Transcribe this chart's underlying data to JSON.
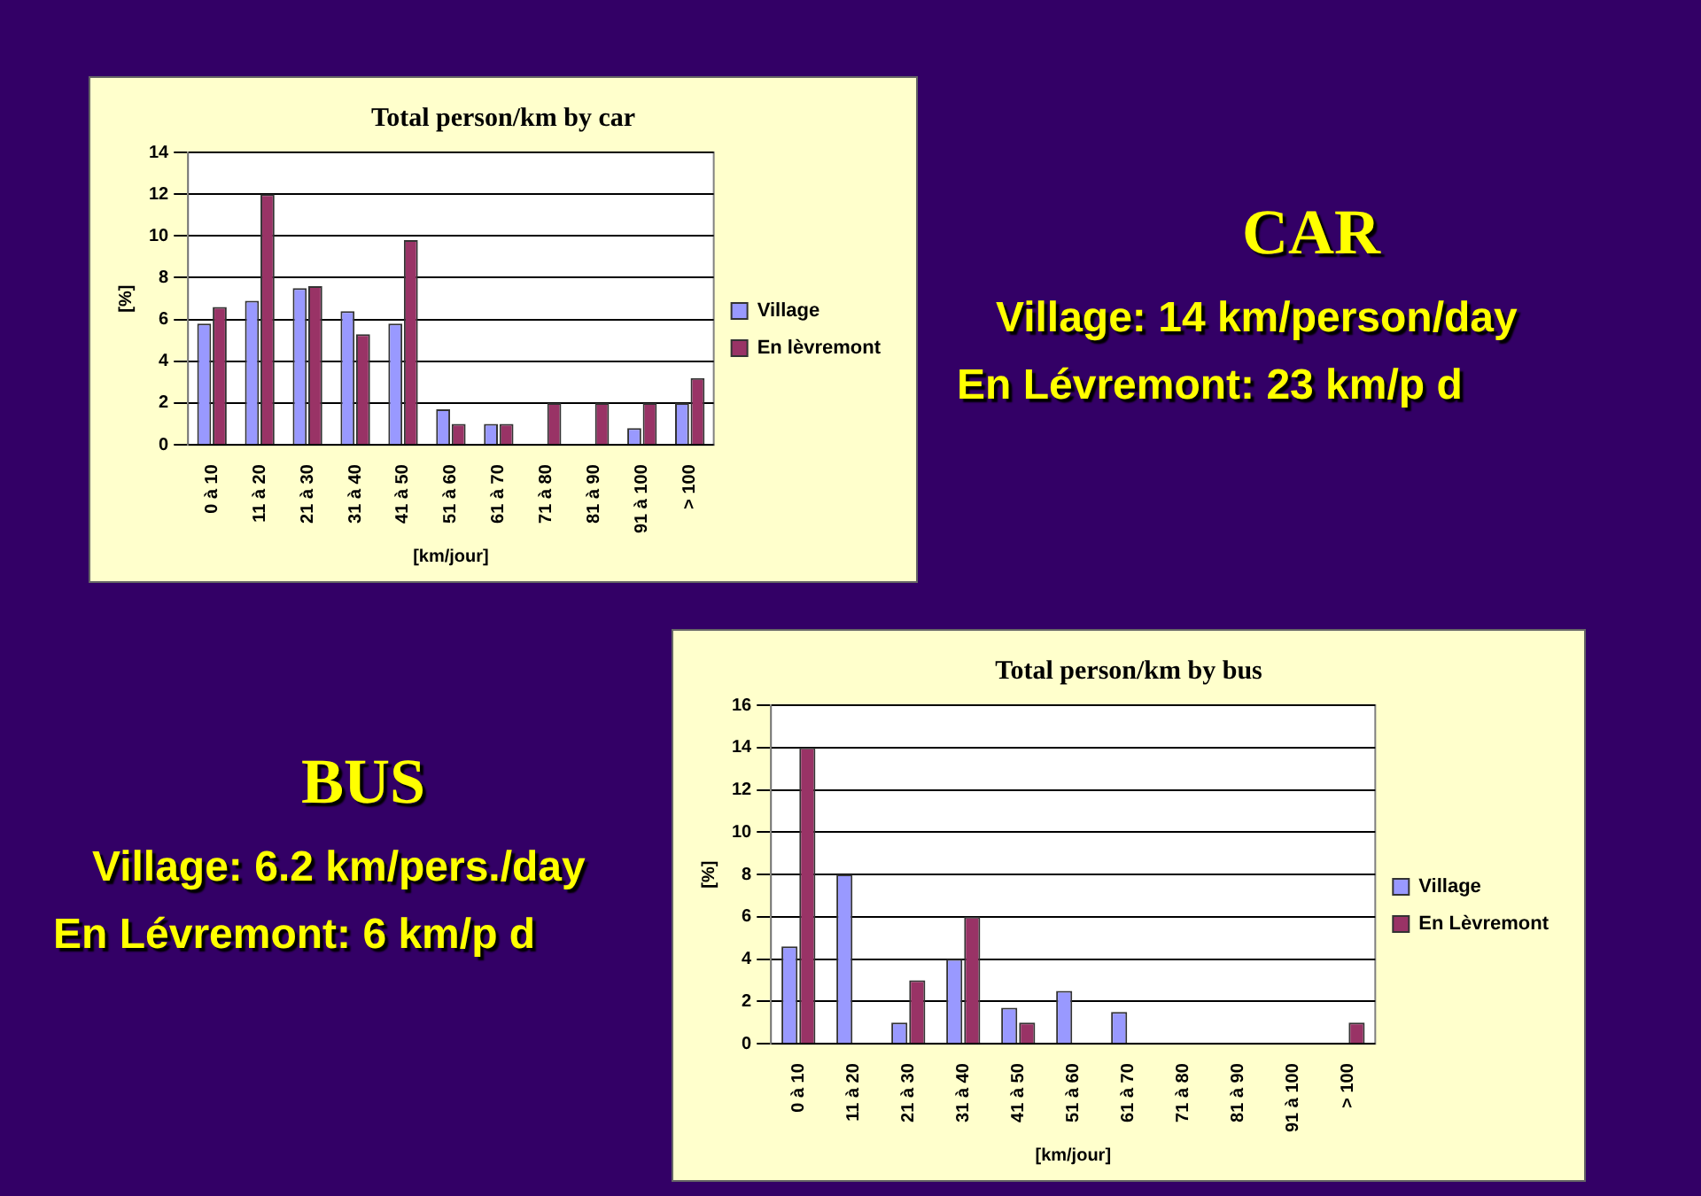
{
  "chart_data": [
    {
      "type": "bar",
      "title": "Total person/km by car",
      "xlabel": "[km/jour]",
      "ylabel": "[%]",
      "categories": [
        "0 à 10",
        "11 à 20",
        "21 à 30",
        "31 à 40",
        "41 à 50",
        "51 à 60",
        "61 à 70",
        "71 à 80",
        "81 à 90",
        "91 à 100",
        "> 100"
      ],
      "series": [
        {
          "name": "Village",
          "color": "#9999ff",
          "values": [
            5.8,
            6.9,
            7.5,
            6.4,
            5.8,
            1.7,
            1,
            null,
            null,
            0.8,
            2
          ]
        },
        {
          "name": "En lèvremont",
          "color": "#993366",
          "values": [
            6.6,
            12,
            7.6,
            5.3,
            9.8,
            1,
            1,
            2,
            2,
            2,
            3.2
          ]
        }
      ],
      "ylim": [
        0,
        14
      ],
      "yticks": [
        0,
        2,
        4,
        6,
        8,
        10,
        12,
        14
      ],
      "grid": "y",
      "legend": "right"
    },
    {
      "type": "other",
      "title": "CAR",
      "annotations": [
        "Village: 14 km/person/day",
        "En Lévremont: 23 km/p d"
      ]
    },
    {
      "type": "other",
      "title": "BUS",
      "annotations": [
        "Village: 6.2 km/pers./day",
        "En Lévremont: 6 km/p d"
      ]
    },
    {
      "type": "bar",
      "title": "Total person/km by bus",
      "xlabel": "[km/jour]",
      "ylabel": "[%]",
      "categories": [
        "0 à 10",
        "11 à 20",
        "21 à 30",
        "31 à 40",
        "41 à 50",
        "51 à 60",
        "61 à 70",
        "71 à 80",
        "81 à 90",
        "91 à 100",
        "> 100"
      ],
      "series": [
        {
          "name": "Village",
          "color": "#9999ff",
          "values": [
            4.6,
            8,
            1,
            4,
            1.7,
            2.5,
            1.5,
            null,
            null,
            null,
            null
          ]
        },
        {
          "name": "En Lèvremont",
          "color": "#993366",
          "values": [
            14,
            null,
            3,
            6,
            1,
            null,
            null,
            null,
            null,
            null,
            1
          ]
        }
      ],
      "ylim": [
        0,
        16
      ],
      "yticks": [
        0,
        2,
        4,
        6,
        8,
        10,
        12,
        14,
        16
      ],
      "grid": "y",
      "legend": "right"
    }
  ]
}
